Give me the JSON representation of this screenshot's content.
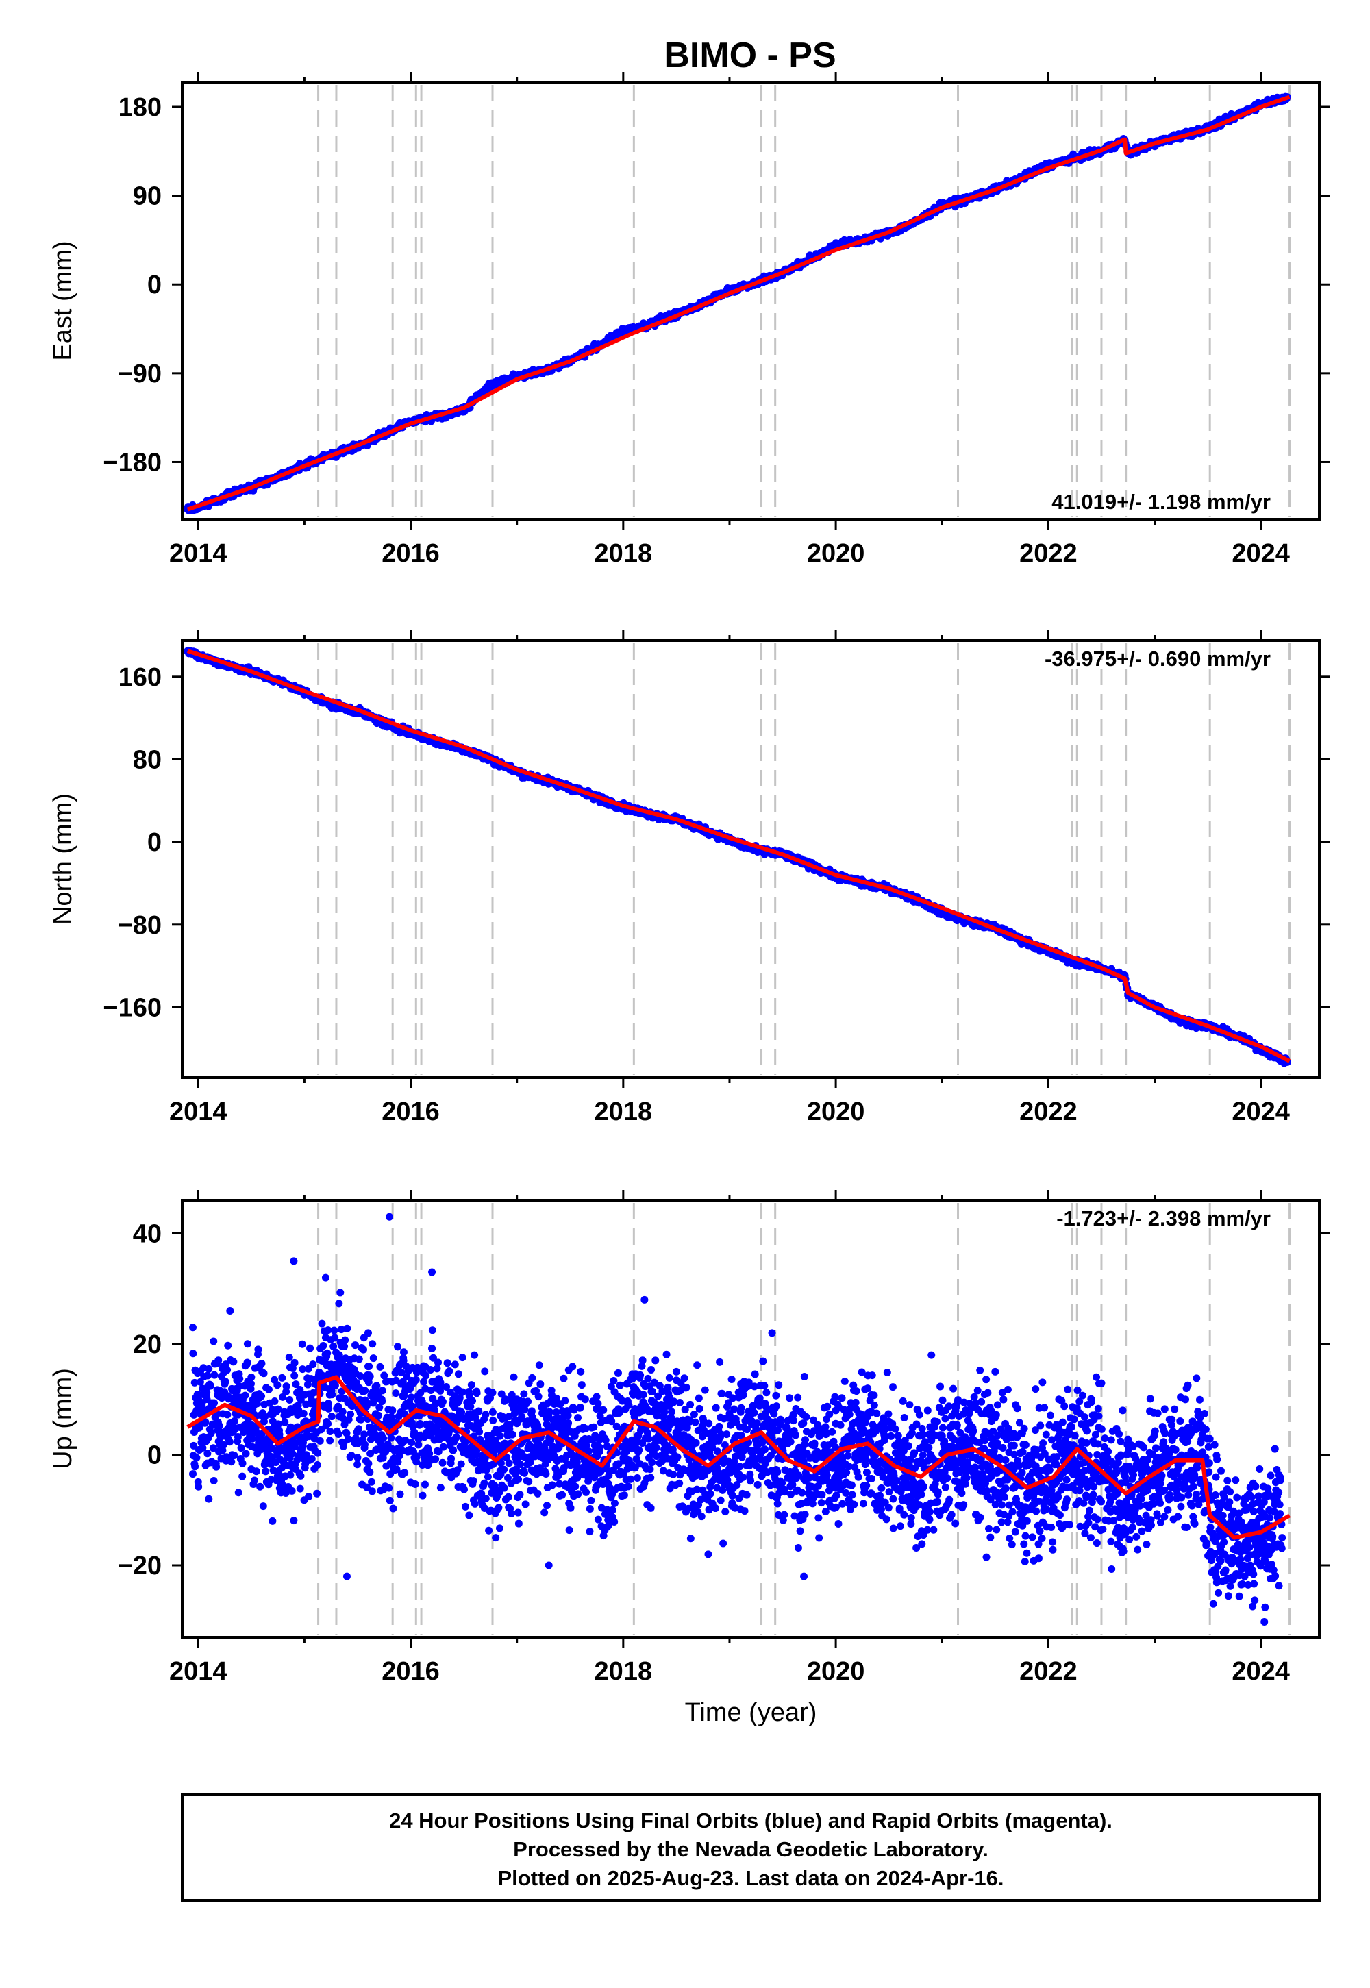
{
  "chart_data": {
    "type": "scatter",
    "title": "BIMO - PS",
    "xlabel": "Time (year)",
    "xlim": [
      2013.85,
      2024.55
    ],
    "x_ticks": [
      "2014",
      "2016",
      "2018",
      "2020",
      "2022",
      "2024"
    ],
    "event_lines": [
      2015.13,
      2015.3,
      2015.83,
      2016.05,
      2016.1,
      2016.77,
      2018.1,
      2019.3,
      2019.43,
      2021.15,
      2022.22,
      2022.27,
      2022.5,
      2022.73,
      2023.52,
      2024.27
    ],
    "panels": [
      {
        "name": "east",
        "ylabel": "East (mm)",
        "ylim": [
          -238,
          205
        ],
        "y_ticks": [
          "180",
          "90",
          "0",
          "−90",
          "−180"
        ],
        "rate_label": "41.019+/- 1.198 mm/yr",
        "series": [
          {
            "name": "positions",
            "color": "#0000ff",
            "x": [
              2013.9,
              2014.0,
              2014.25,
              2014.5,
              2014.75,
              2015.0,
              2015.25,
              2015.5,
              2015.75,
              2016.0,
              2016.25,
              2016.5,
              2016.75,
              2017.0,
              2017.25,
              2017.5,
              2017.75,
              2018.0,
              2018.25,
              2018.5,
              2018.75,
              2019.0,
              2019.25,
              2019.5,
              2019.75,
              2020.0,
              2020.25,
              2020.5,
              2020.75,
              2021.0,
              2021.25,
              2021.5,
              2021.75,
              2022.0,
              2022.25,
              2022.5,
              2022.72,
              2022.75,
              2023.0,
              2023.25,
              2023.5,
              2023.75,
              2024.0,
              2024.25
            ],
            "y": [
              -228,
              -226,
              -215,
              -205,
              -195,
              -183,
              -173,
              -164,
              -152,
              -139,
              -134,
              -127,
              -102,
              -93,
              -88,
              -77,
              -63,
              -48,
              -40,
              -31,
              -19,
              -6,
              2,
              12,
              25,
              40,
              45,
              52,
              63,
              80,
              87,
              96,
              108,
              121,
              128,
              135,
              146,
              133,
              143,
              151,
              158,
              170,
              183,
              190
            ]
          },
          {
            "name": "model",
            "color": "#ff0000",
            "x": [
              2013.9,
              2014.5,
              2015.0,
              2015.5,
              2016.0,
              2016.5,
              2017.0,
              2017.5,
              2018.1,
              2018.5,
              2019.0,
              2019.5,
              2020.0,
              2020.5,
              2021.0,
              2021.5,
              2022.0,
              2022.5,
              2022.72,
              2022.73,
              2023.0,
              2023.5,
              2024.0,
              2024.27
            ],
            "y": [
              -228,
              -206,
              -184,
              -163,
              -141,
              -125,
              -96,
              -78,
              -49,
              -32,
              -9,
              12,
              35,
              53,
              78,
              96,
              118,
              136,
              147,
              133,
              143,
              157,
              180,
              190
            ]
          }
        ]
      },
      {
        "name": "north",
        "ylabel": "North (mm)",
        "ylim": [
          -228,
          195
        ],
        "y_ticks": [
          "160",
          "80",
          "0",
          "−80",
          "−160"
        ],
        "rate_label": "-36.975+/- 0.690 mm/yr",
        "series": [
          {
            "name": "positions",
            "color": "#0000ff",
            "x": [
              2013.9,
              2014.0,
              2014.25,
              2014.5,
              2014.75,
              2015.0,
              2015.25,
              2015.5,
              2015.75,
              2016.0,
              2016.25,
              2016.5,
              2016.75,
              2017.0,
              2017.25,
              2017.5,
              2017.75,
              2018.0,
              2018.25,
              2018.5,
              2018.75,
              2019.0,
              2019.25,
              2019.5,
              2019.75,
              2020.0,
              2020.25,
              2020.5,
              2020.75,
              2021.0,
              2021.25,
              2021.5,
              2021.75,
              2022.0,
              2022.25,
              2022.5,
              2022.72,
              2022.75,
              2023.0,
              2023.25,
              2023.5,
              2023.75,
              2024.0,
              2024.25
            ],
            "y": [
              185,
              180,
              172,
              165,
              156,
              145,
              133,
              127,
              115,
              106,
              97,
              90,
              80,
              68,
              60,
              53,
              43,
              34,
              27,
              22,
              12,
              2,
              -8,
              -12,
              -22,
              -33,
              -40,
              -45,
              -55,
              -68,
              -77,
              -83,
              -95,
              -106,
              -116,
              -122,
              -131,
              -147,
              -159,
              -173,
              -178,
              -187,
              -200,
              -213
            ]
          },
          {
            "name": "model",
            "color": "#ff0000",
            "x": [
              2013.9,
              2014.5,
              2015.0,
              2015.5,
              2016.0,
              2016.5,
              2017.0,
              2017.5,
              2018.0,
              2018.5,
              2019.0,
              2019.5,
              2020.0,
              2020.5,
              2021.0,
              2021.5,
              2022.0,
              2022.5,
              2022.72,
              2022.75,
              2023.0,
              2023.5,
              2024.0,
              2024.27
            ],
            "y": [
              185,
              165,
              146,
              128,
              108,
              92,
              70,
              53,
              35,
              22,
              4,
              -12,
              -32,
              -45,
              -64,
              -84,
              -103,
              -122,
              -132,
              -146,
              -160,
              -178,
              -198,
              -212
            ]
          }
        ]
      },
      {
        "name": "up",
        "ylabel": "Up (mm)",
        "ylim": [
          -33,
          46
        ],
        "y_ticks": [
          "40",
          "20",
          "0",
          "−20"
        ],
        "rate_label": "-1.723+/- 2.398 mm/yr",
        "series": [
          {
            "name": "positions",
            "color": "#0000ff",
            "x": [
              2013.95,
              2014.1,
              2014.3,
              2014.5,
              2014.7,
              2014.9,
              2015.2,
              2015.4,
              2015.6,
              2015.8,
              2016.0,
              2016.2,
              2016.4,
              2016.6,
              2016.8,
              2017.0,
              2017.3,
              2017.6,
              2017.9,
              2018.2,
              2018.5,
              2018.8,
              2019.1,
              2019.4,
              2019.7,
              2020.0,
              2020.3,
              2020.6,
              2020.9,
              2021.2,
              2021.5,
              2021.8,
              2022.1,
              2022.4,
              2022.7,
              2023.0,
              2023.3,
              2023.6,
              2023.9,
              2024.2
            ],
            "y": [
              23,
              -8,
              26,
              14,
              -12,
              35,
              32,
              -22,
              22,
              43,
              -5,
              33,
              10,
              18,
              -15,
              10,
              -20,
              15,
              -10,
              28,
              15,
              -18,
              5,
              22,
              -22,
              8,
              12,
              -10,
              18,
              -5,
              15,
              -12,
              10,
              -15,
              8,
              -5,
              12,
              -25,
              -20,
              -15
            ]
          },
          {
            "name": "model",
            "color": "#ff0000",
            "x": [
              2013.9,
              2014.25,
              2014.5,
              2014.75,
              2015.0,
              2015.13,
              2015.14,
              2015.3,
              2015.55,
              2015.8,
              2016.05,
              2016.3,
              2016.55,
              2016.8,
              2017.05,
              2017.3,
              2017.55,
              2017.8,
              2018.1,
              2018.3,
              2018.55,
              2018.8,
              2019.05,
              2019.3,
              2019.55,
              2019.8,
              2020.05,
              2020.3,
              2020.55,
              2020.8,
              2021.05,
              2021.3,
              2021.55,
              2021.8,
              2022.05,
              2022.27,
              2022.5,
              2022.73,
              2022.95,
              2023.2,
              2023.45,
              2023.52,
              2023.75,
              2024.0,
              2024.27
            ],
            "y": [
              5,
              9,
              7,
              2,
              5,
              6,
              13,
              14,
              8,
              4,
              8,
              7,
              3,
              -1,
              3,
              4,
              1,
              -2,
              6,
              5,
              1,
              -2,
              2,
              4,
              -1,
              -3,
              1,
              2,
              -2,
              -4,
              0,
              1,
              -2,
              -6,
              -4,
              1,
              -3,
              -7,
              -4,
              -1,
              -1,
              -11,
              -15,
              -14,
              -11
            ]
          }
        ]
      }
    ]
  },
  "caption": {
    "line1": "24 Hour Positions Using Final Orbits (blue) and Rapid Orbits (magenta).",
    "line2": "Processed by the Nevada Geodetic Laboratory.",
    "line3": "Plotted on 2025-Aug-23. Last data on 2024-Apr-16."
  }
}
